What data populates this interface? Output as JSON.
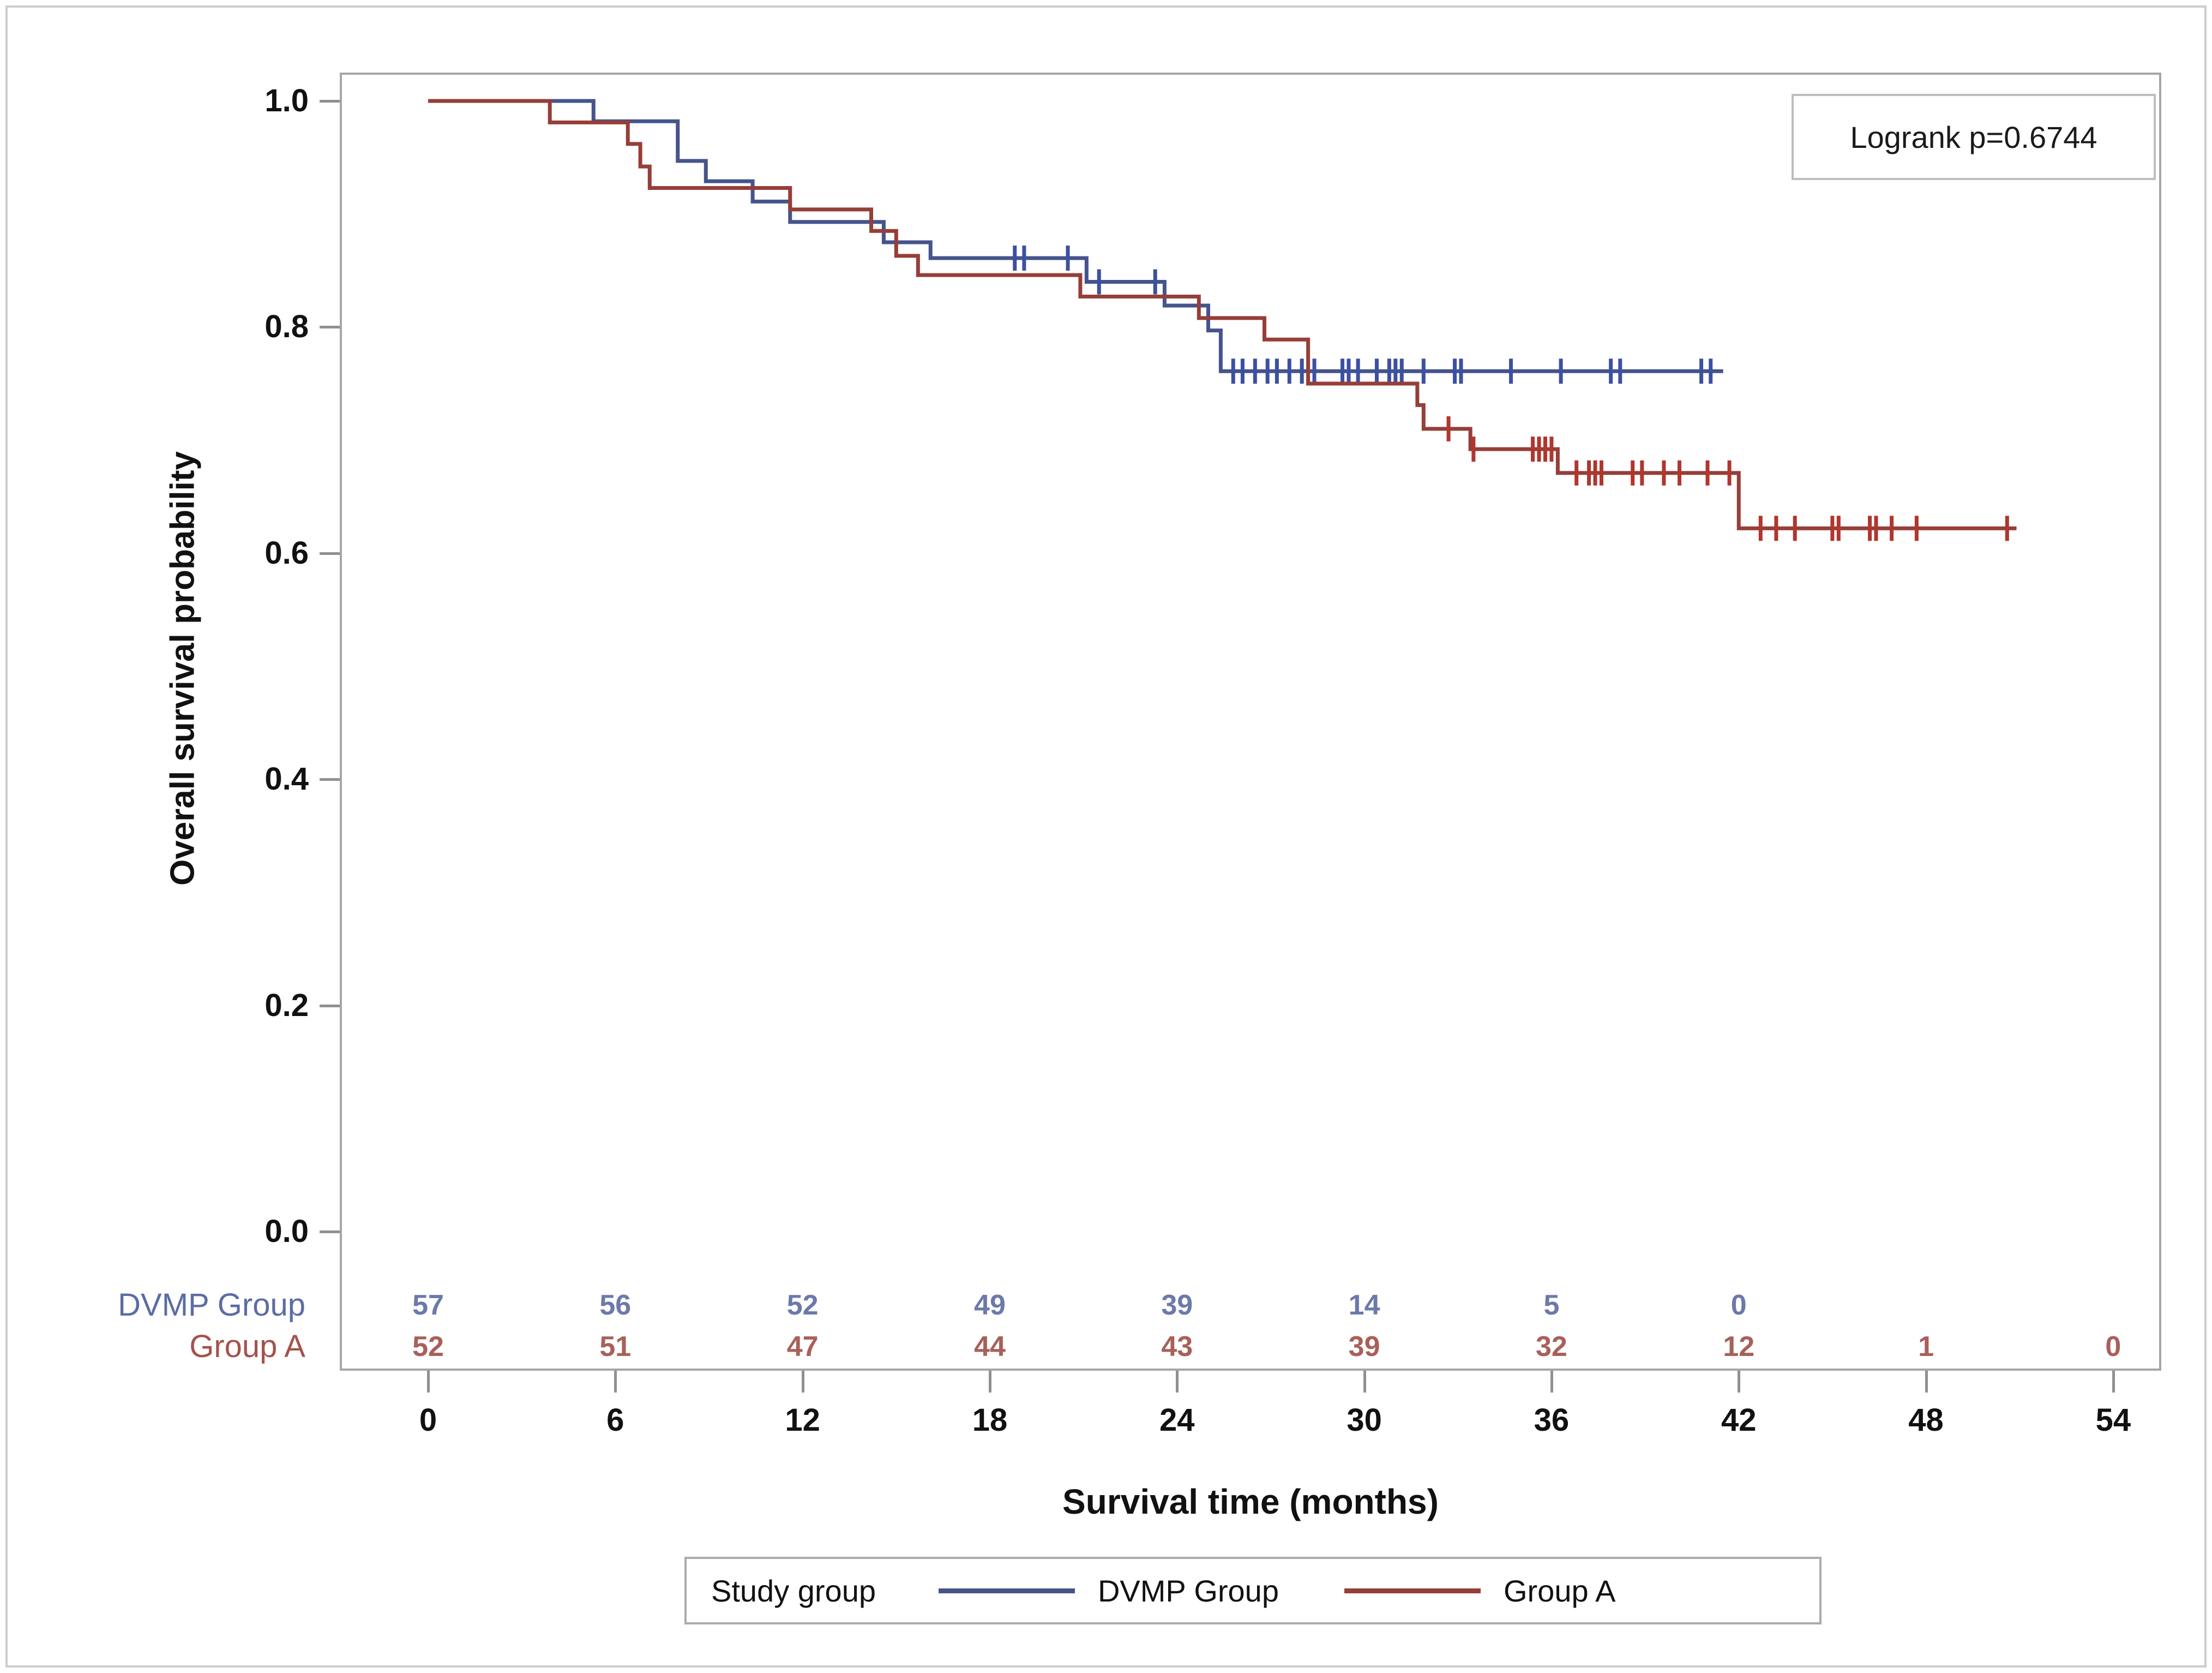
{
  "annotation_box": {
    "text": "Logrank p=0.6744"
  },
  "axes": {
    "x_title": "Survival time (months)",
    "y_title": "Overall survival probability"
  },
  "legend": {
    "title": "Study group",
    "entries": [
      {
        "label": "DVMP Group",
        "color": "#46548c"
      },
      {
        "label": "Group A",
        "color": "#963e38"
      }
    ]
  },
  "at_risk": {
    "rows": [
      {
        "label": "DVMP Group",
        "label_color": "#5b6ca4",
        "value_color": "#6b79ab",
        "values": [
          "57",
          "56",
          "52",
          "49",
          "39",
          "14",
          "5",
          "0"
        ]
      },
      {
        "label": "Group A",
        "label_color": "#a4524b",
        "value_color": "#a8605a",
        "values": [
          "52",
          "51",
          "47",
          "44",
          "43",
          "39",
          "32",
          "12",
          "1",
          "0"
        ]
      }
    ]
  },
  "chart_data": {
    "type": "line",
    "subtype": "kaplan-meier-step",
    "title": "",
    "xlabel": "Survival time (months)",
    "ylabel": "Overall survival probability",
    "xlim": [
      0,
      54
    ],
    "ylim": [
      0.0,
      1.0
    ],
    "x_ticks": [
      0,
      6,
      12,
      18,
      24,
      30,
      36,
      42,
      48,
      54
    ],
    "y_ticks": [
      1.0,
      0.8,
      0.6,
      0.4,
      0.2,
      0.0
    ],
    "grid": false,
    "legend_position": "bottom",
    "annotation": "Logrank p=0.6744",
    "series": [
      {
        "name": "DVMP Group",
        "color": "#46548c",
        "censor_color": "#3c50a2",
        "steps": [
          [
            0,
            1.0
          ],
          [
            5.3,
            0.982
          ],
          [
            8.0,
            0.947
          ],
          [
            8.9,
            0.929
          ],
          [
            10.4,
            0.911
          ],
          [
            11.6,
            0.893
          ],
          [
            14.6,
            0.875
          ],
          [
            16.1,
            0.861
          ],
          [
            21.1,
            0.84
          ],
          [
            23.6,
            0.819
          ],
          [
            25.0,
            0.797
          ],
          [
            25.4,
            0.761
          ]
        ],
        "end_time": 41.5,
        "censors": [
          [
            18.8,
            0.861
          ],
          [
            19.1,
            0.861
          ],
          [
            20.5,
            0.861
          ],
          [
            21.5,
            0.84
          ],
          [
            23.3,
            0.84
          ],
          [
            25.8,
            0.761
          ],
          [
            26.1,
            0.761
          ],
          [
            26.5,
            0.761
          ],
          [
            26.9,
            0.761
          ],
          [
            27.2,
            0.761
          ],
          [
            27.6,
            0.761
          ],
          [
            28.0,
            0.761
          ],
          [
            28.4,
            0.761
          ],
          [
            29.3,
            0.761
          ],
          [
            29.5,
            0.761
          ],
          [
            29.8,
            0.761
          ],
          [
            30.4,
            0.761
          ],
          [
            30.8,
            0.761
          ],
          [
            31.0,
            0.761
          ],
          [
            31.2,
            0.761
          ],
          [
            31.9,
            0.761
          ],
          [
            32.9,
            0.761
          ],
          [
            33.1,
            0.761
          ],
          [
            34.7,
            0.761
          ],
          [
            36.3,
            0.761
          ],
          [
            37.9,
            0.761
          ],
          [
            38.2,
            0.761
          ],
          [
            40.8,
            0.761
          ],
          [
            41.1,
            0.761
          ]
        ]
      },
      {
        "name": "Group A",
        "color": "#963e38",
        "censor_color": "#b0362e",
        "steps": [
          [
            0,
            1.0
          ],
          [
            3.9,
            0.981
          ],
          [
            6.4,
            0.962
          ],
          [
            6.8,
            0.942
          ],
          [
            7.1,
            0.923
          ],
          [
            11.6,
            0.904
          ],
          [
            14.2,
            0.885
          ],
          [
            15.0,
            0.863
          ],
          [
            15.7,
            0.846
          ],
          [
            20.9,
            0.827
          ],
          [
            24.7,
            0.808
          ],
          [
            26.8,
            0.789
          ],
          [
            28.2,
            0.75
          ],
          [
            31.7,
            0.731
          ],
          [
            31.9,
            0.71
          ],
          [
            33.4,
            0.692
          ],
          [
            36.2,
            0.671
          ],
          [
            42.0,
            0.622
          ]
        ],
        "end_time": 50.9,
        "censors": [
          [
            32.7,
            0.71
          ],
          [
            33.5,
            0.692
          ],
          [
            35.4,
            0.692
          ],
          [
            35.6,
            0.692
          ],
          [
            35.8,
            0.692
          ],
          [
            36.0,
            0.692
          ],
          [
            36.8,
            0.671
          ],
          [
            37.2,
            0.671
          ],
          [
            37.4,
            0.671
          ],
          [
            37.6,
            0.671
          ],
          [
            38.6,
            0.671
          ],
          [
            38.9,
            0.671
          ],
          [
            39.6,
            0.671
          ],
          [
            40.1,
            0.671
          ],
          [
            41.0,
            0.671
          ],
          [
            41.7,
            0.671
          ],
          [
            42.7,
            0.622
          ],
          [
            43.2,
            0.622
          ],
          [
            43.8,
            0.622
          ],
          [
            45.0,
            0.622
          ],
          [
            45.2,
            0.622
          ],
          [
            46.2,
            0.622
          ],
          [
            46.4,
            0.622
          ],
          [
            46.9,
            0.622
          ],
          [
            47.7,
            0.622
          ],
          [
            50.6,
            0.622
          ]
        ]
      }
    ]
  }
}
